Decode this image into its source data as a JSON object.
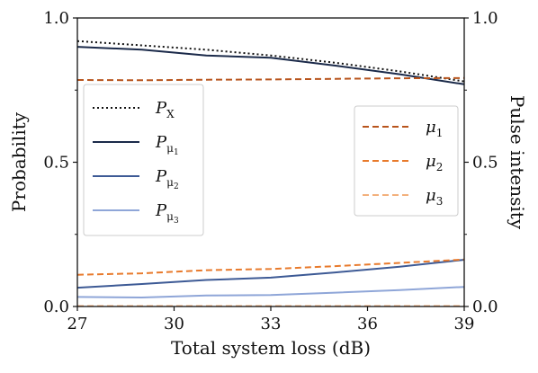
{
  "chart_data": {
    "type": "line",
    "xlabel": "Total system loss (dB)",
    "ylabel_left": "Probability",
    "ylabel_right": "Pulse intensity",
    "xlim": [
      27,
      39
    ],
    "ylim_left": [
      0,
      1
    ],
    "ylim_right": [
      0,
      1
    ],
    "x_ticks": [
      "27",
      "30",
      "33",
      "36",
      "39"
    ],
    "y_ticks_left": [
      "0.0",
      "0.5",
      "1.0"
    ],
    "y_ticks_right": [
      "0.0",
      "0.5",
      "1.0"
    ],
    "grid": false,
    "series": [
      {
        "name": "P_X",
        "axis": "left",
        "style": "dotted",
        "color": "#111111",
        "x": [
          27,
          29,
          31,
          33,
          35,
          37,
          39
        ],
        "y": [
          0.92,
          0.905,
          0.89,
          0.87,
          0.845,
          0.815,
          0.78
        ]
      },
      {
        "name": "P_μ1",
        "axis": "left",
        "style": "solid",
        "color": "#1b2a4a",
        "x": [
          27,
          29,
          31,
          33,
          35,
          37,
          39
        ],
        "y": [
          0.9,
          0.89,
          0.87,
          0.862,
          0.835,
          0.805,
          0.77
        ]
      },
      {
        "name": "P_μ2",
        "axis": "left",
        "style": "solid",
        "color": "#3d5a95",
        "x": [
          27,
          29,
          31,
          33,
          35,
          37,
          39
        ],
        "y": [
          0.065,
          0.078,
          0.092,
          0.1,
          0.118,
          0.138,
          0.162
        ]
      },
      {
        "name": "P_μ3",
        "axis": "left",
        "style": "solid",
        "color": "#8fa6d8",
        "x": [
          27,
          29,
          31,
          33,
          35,
          37,
          39
        ],
        "y": [
          0.033,
          0.031,
          0.038,
          0.04,
          0.048,
          0.057,
          0.068
        ]
      },
      {
        "name": "μ1",
        "axis": "right",
        "style": "dashed",
        "color": "#b8541c",
        "x": [
          27,
          29,
          31,
          33,
          35,
          37,
          39
        ],
        "y": [
          0.785,
          0.784,
          0.786,
          0.787,
          0.789,
          0.791,
          0.792
        ]
      },
      {
        "name": "μ2",
        "axis": "right",
        "style": "dashed",
        "color": "#e87a2c",
        "x": [
          27,
          29,
          31,
          33,
          35,
          37,
          39
        ],
        "y": [
          0.11,
          0.115,
          0.126,
          0.13,
          0.14,
          0.151,
          0.163
        ]
      },
      {
        "name": "μ3",
        "axis": "right",
        "style": "dashed",
        "color": "#f3b07c",
        "x": [
          27,
          29,
          31,
          33,
          35,
          37,
          39
        ],
        "y": [
          0.0015,
          0.0015,
          0.0015,
          0.0015,
          0.0015,
          0.0015,
          0.0015
        ]
      }
    ],
    "legend_left": {
      "placement": "center-left",
      "entries": [
        {
          "series": 0,
          "main": "P",
          "sub": "X",
          "subsub": ""
        },
        {
          "series": 1,
          "main": "P",
          "sub": "μ",
          "subsub": "1"
        },
        {
          "series": 2,
          "main": "P",
          "sub": "μ",
          "subsub": "2"
        },
        {
          "series": 3,
          "main": "P",
          "sub": "μ",
          "subsub": "3"
        }
      ]
    },
    "legend_right": {
      "placement": "center-right",
      "entries": [
        {
          "series": 4,
          "main": "μ",
          "sub": "1",
          "subsub": ""
        },
        {
          "series": 5,
          "main": "μ",
          "sub": "2",
          "subsub": ""
        },
        {
          "series": 6,
          "main": "μ",
          "sub": "3",
          "subsub": ""
        }
      ]
    }
  }
}
